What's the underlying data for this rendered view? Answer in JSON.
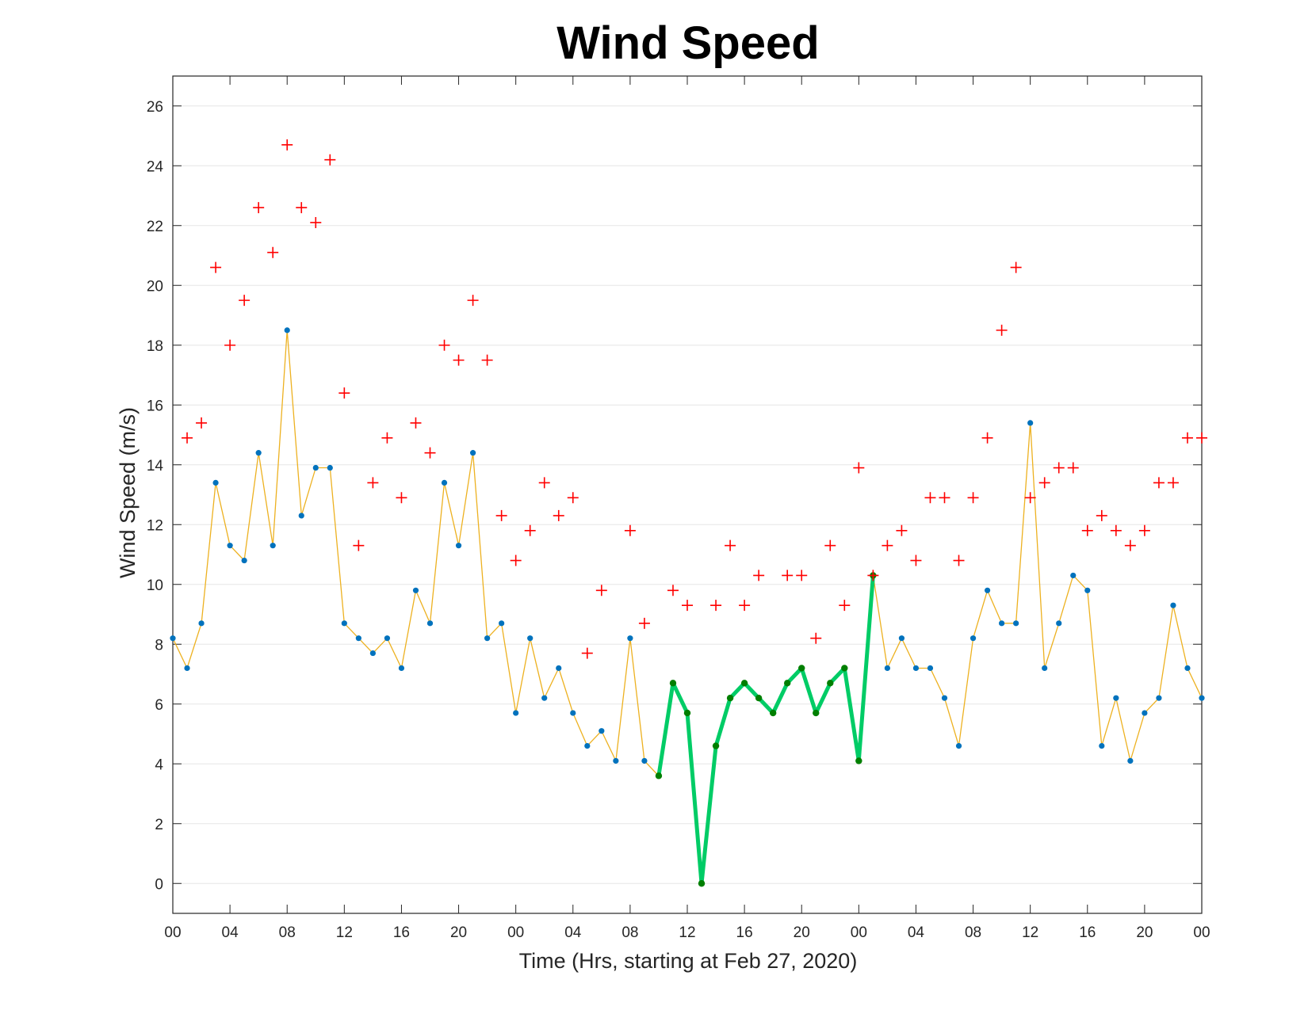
{
  "chart_data": {
    "type": "line",
    "title": "Wind Speed",
    "xlabel": "Time (Hrs, starting at Feb 27, 2020)",
    "ylabel": "Wind Speed (m/s)",
    "x_unit": "hours",
    "x_range": [
      0,
      72
    ],
    "ylim": [
      -1,
      27
    ],
    "yticks": [
      0,
      2,
      4,
      6,
      8,
      10,
      12,
      14,
      16,
      18,
      20,
      22,
      24,
      26
    ],
    "ytick_labels": [
      "0",
      "2",
      "4",
      "6",
      "8",
      "10",
      "12",
      "14",
      "16",
      "18",
      "20",
      "22",
      "24",
      "26"
    ],
    "xticks": [
      0,
      4,
      8,
      12,
      16,
      20,
      24,
      28,
      32,
      36,
      40,
      44,
      48,
      52,
      56,
      60,
      64,
      68,
      72
    ],
    "xtick_labels": [
      "00",
      "04",
      "08",
      "12",
      "16",
      "20",
      "00",
      "04",
      "08",
      "12",
      "16",
      "20",
      "00",
      "04",
      "08",
      "12",
      "16",
      "20",
      "00"
    ],
    "grid": "horizontal",
    "colors": {
      "speed_line": "#EDB120",
      "speed_marker": "#0072BD",
      "gust_marker": "#FF0000",
      "highlight_line": "#00CC66",
      "highlight_marker": "#007F00"
    },
    "series": [
      {
        "role": "wind_speed",
        "x": [
          0,
          1,
          2,
          3,
          4,
          5,
          6,
          7,
          8,
          9,
          10,
          11,
          12,
          13,
          14,
          15,
          16,
          17,
          18,
          19,
          20,
          21,
          22,
          23,
          24,
          25,
          26,
          27,
          28,
          29,
          30,
          31,
          32,
          33,
          34,
          35,
          36,
          37,
          38,
          39,
          40,
          41,
          42,
          43,
          44,
          45,
          46,
          47,
          48,
          49,
          50,
          51,
          52,
          53,
          54,
          55,
          56,
          57,
          58,
          59,
          60,
          61,
          62,
          63,
          64,
          65,
          66,
          67,
          68,
          69,
          70,
          71,
          72
        ],
        "values": [
          8.2,
          7.2,
          8.7,
          13.4,
          11.3,
          10.8,
          14.4,
          11.3,
          18.5,
          12.3,
          13.9,
          13.9,
          8.7,
          8.2,
          7.7,
          8.2,
          7.2,
          9.8,
          8.7,
          13.4,
          11.3,
          14.4,
          8.2,
          8.7,
          5.7,
          8.2,
          6.2,
          7.2,
          5.7,
          4.6,
          5.1,
          4.1,
          8.2,
          4.1,
          3.6,
          6.7,
          5.7,
          0,
          4.6,
          6.2,
          6.7,
          6.2,
          5.7,
          6.7,
          7.2,
          5.7,
          6.7,
          7.2,
          4.1,
          10.3,
          7.2,
          8.2,
          7.2,
          7.2,
          6.2,
          4.6,
          8.2,
          9.8,
          8.7,
          8.7,
          15.4,
          7.2,
          8.7,
          10.3,
          9.8,
          4.6,
          6.2,
          4.1,
          5.7,
          6.2,
          9.3,
          7.2,
          6.2
        ]
      },
      {
        "role": "wind_gust",
        "x": [
          1,
          2,
          3,
          4,
          5,
          6,
          7,
          8,
          9,
          10,
          11,
          12,
          13,
          14,
          15,
          16,
          17,
          18,
          19,
          20,
          21,
          22,
          23,
          24,
          25,
          26,
          27,
          28,
          29,
          30,
          32,
          33,
          35,
          36,
          38,
          39,
          40,
          41,
          43,
          44,
          45,
          46,
          47,
          48,
          49,
          50,
          51,
          52,
          53,
          54,
          55,
          56,
          57,
          58,
          59,
          60,
          61,
          62,
          63,
          64,
          65,
          66,
          67,
          68,
          69,
          70,
          71,
          72
        ],
        "values": [
          14.9,
          15.4,
          20.6,
          18.0,
          19.5,
          22.6,
          21.1,
          24.7,
          22.6,
          22.1,
          24.2,
          16.4,
          11.3,
          13.4,
          14.9,
          12.9,
          15.4,
          14.4,
          18.0,
          17.5,
          19.5,
          17.5,
          12.3,
          10.8,
          11.8,
          13.4,
          12.3,
          12.9,
          7.7,
          9.8,
          11.8,
          8.7,
          9.8,
          9.3,
          9.3,
          11.3,
          9.3,
          10.3,
          10.3,
          10.3,
          8.2,
          11.3,
          9.3,
          13.9,
          10.3,
          11.3,
          11.8,
          10.8,
          12.9,
          12.9,
          10.8,
          12.9,
          14.9,
          18.5,
          20.6,
          12.9,
          13.4,
          13.9,
          13.9,
          11.8,
          12.3,
          11.8,
          11.3,
          11.8,
          13.4,
          13.4,
          14.9,
          14.9
        ]
      },
      {
        "role": "highlighted_period",
        "x": [
          34,
          35,
          36,
          37,
          38,
          39,
          40,
          41,
          42,
          43,
          44,
          45,
          46,
          47,
          48,
          49
        ],
        "values": [
          3.6,
          6.7,
          5.7,
          0,
          4.6,
          6.2,
          6.7,
          6.2,
          5.7,
          6.7,
          7.2,
          5.7,
          6.7,
          7.2,
          4.1,
          10.3
        ]
      }
    ]
  }
}
